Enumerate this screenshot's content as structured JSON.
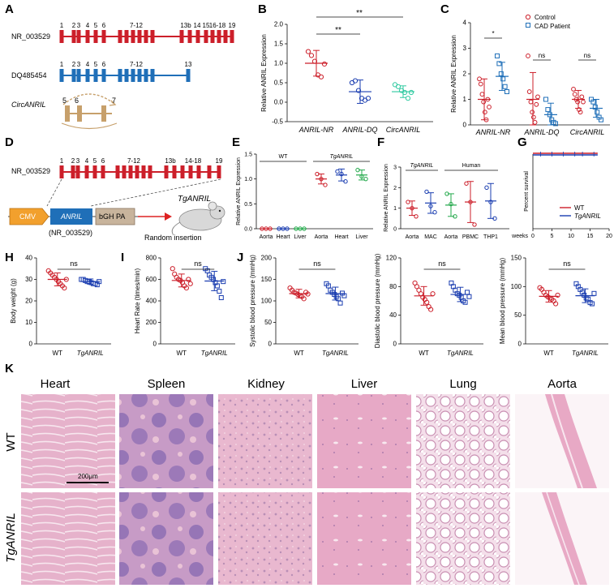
{
  "figure": {
    "panel_letters": [
      "A",
      "B",
      "C",
      "D",
      "E",
      "F",
      "G",
      "H",
      "I",
      "J",
      "K"
    ],
    "colors": {
      "red": "#cc1f2a",
      "blue": "#1f6fb8",
      "teal": "#2fc9a0",
      "navy": "#1a3db0",
      "green": "#22a84a",
      "tan": "#c7a06b",
      "he_pink": "#e3a9c6",
      "he_purple": "#8d6fb0"
    }
  },
  "panelA": {
    "transcripts": [
      {
        "name": "NR_003529",
        "exon_labels": [
          "1",
          "2",
          "3",
          "4",
          "5",
          "6",
          "7-12",
          "13b",
          "14",
          "15",
          "16-18",
          "19"
        ]
      },
      {
        "name": "DQ485454",
        "exon_labels": [
          "1",
          "2",
          "3",
          "4",
          "5",
          "6",
          "7-12",
          "13"
        ]
      }
    ],
    "circ": {
      "name": "CircANRIL",
      "exon_labels": [
        "5",
        "6",
        "7"
      ]
    }
  },
  "panelD": {
    "transcript": "NR_003529",
    "exon_labels": [
      "1",
      "2",
      "3",
      "4",
      "5",
      "6",
      "7-12",
      "13b",
      "14-18",
      "19"
    ],
    "construct": {
      "cmv": "CMV",
      "anril": "ANRIL",
      "bgh": "bGH PA",
      "sub": "(NR_003529)",
      "insertion": "Random insertion",
      "mouse": "TgANRIL"
    }
  },
  "chart_data": [
    {
      "panel": "B",
      "type": "scatter",
      "ylabel": "Relative ANRIL Expression",
      "ylim": [
        -0.5,
        2.0
      ],
      "yticks": [
        "-0.5",
        "0.0",
        "0.5",
        "1.0",
        "1.5",
        "2.0"
      ],
      "categories": [
        "ANRIL-NR",
        "ANRIL-DQ",
        "CircANRIL"
      ],
      "series": [
        {
          "group": "ANRIL-NR",
          "mean": 1.0,
          "sd": 0.33,
          "values": [
            1.3,
            1.2,
            1.05,
            0.7,
            0.65,
            0.98
          ]
        },
        {
          "group": "ANRIL-DQ",
          "mean": 0.27,
          "sd": 0.3,
          "values": [
            0.5,
            0.55,
            0.3,
            0.1,
            0.05,
            0.1
          ]
        },
        {
          "group": "CircANRIL",
          "mean": 0.27,
          "sd": 0.15,
          "values": [
            0.45,
            0.4,
            0.3,
            0.25,
            0.1,
            0.25
          ]
        }
      ],
      "annotations": [
        "**",
        "**"
      ]
    },
    {
      "panel": "C",
      "type": "scatter",
      "ylabel": "Relative ANRIL Expression",
      "ylim": [
        0,
        4
      ],
      "yticks": [
        "0",
        "1",
        "2",
        "3",
        "4"
      ],
      "categories": [
        "ANRIL-NR",
        "ANRIL-DQ",
        "CircANRIL"
      ],
      "legend": [
        "Control",
        "CAD Patient"
      ],
      "series": [
        {
          "name": "Control",
          "groups": [
            {
              "mean": 1.0,
              "sd": 0.8,
              "values": [
                1.8,
                1.6,
                1.2,
                0.9,
                0.5,
                0.2,
                1.0,
                0.7
              ]
            },
            {
              "mean": 1.0,
              "sd": 1.05,
              "values": [
                2.7,
                1.3,
                0.9,
                0.5,
                0.3,
                0.1,
                0.8,
                1.1
              ]
            },
            {
              "mean": 1.0,
              "sd": 0.35,
              "values": [
                1.4,
                1.2,
                1.0,
                0.9,
                0.6,
                0.5,
                1.1,
                0.9
              ]
            }
          ]
        },
        {
          "name": "CAD Patient",
          "groups": [
            {
              "mean": 1.9,
              "sd": 0.55,
              "values": [
                2.7,
                2.4,
                2.0,
                1.8,
                1.5,
                1.3
              ]
            },
            {
              "mean": 0.4,
              "sd": 0.45,
              "values": [
                1.0,
                0.6,
                0.4,
                0.2,
                0.1,
                0.05
              ]
            },
            {
              "mean": 0.65,
              "sd": 0.35,
              "values": [
                1.0,
                0.9,
                0.7,
                0.5,
                0.3,
                0.2
              ]
            }
          ]
        }
      ],
      "annotations": [
        "*",
        "ns",
        "ns"
      ]
    },
    {
      "panel": "E",
      "type": "scatter",
      "ylabel": "Relative ANRIL Expression",
      "ylim": [
        0,
        1.5
      ],
      "yticks": [
        "0.0",
        "0.5",
        "1.0",
        "1.5"
      ],
      "categories": [
        "Aorta",
        "Heart",
        "Liver",
        "Aorta",
        "Heart",
        "Liver"
      ],
      "group_labels": [
        "WT",
        "TgANRIL"
      ],
      "series": [
        {
          "mean": 0.0,
          "sd": 0.0,
          "color": "red",
          "values": [
            0,
            0,
            0
          ]
        },
        {
          "mean": 0.0,
          "sd": 0.0,
          "color": "navy",
          "values": [
            0,
            0,
            0
          ]
        },
        {
          "mean": 0.0,
          "sd": 0.0,
          "color": "green",
          "values": [
            0,
            0,
            0
          ]
        },
        {
          "mean": 1.0,
          "sd": 0.1,
          "color": "red",
          "values": [
            1.1,
            1.0,
            0.88
          ]
        },
        {
          "mean": 1.08,
          "sd": 0.12,
          "color": "navy",
          "values": [
            1.15,
            1.1,
            0.95
          ]
        },
        {
          "mean": 1.08,
          "sd": 0.1,
          "color": "green",
          "values": [
            1.18,
            1.05,
            1.0
          ]
        }
      ]
    },
    {
      "panel": "F",
      "type": "scatter",
      "ylabel": "Relative ANRIL Expression",
      "ylim": [
        0,
        3
      ],
      "yticks": [
        "0",
        "1",
        "2",
        "3"
      ],
      "categories": [
        "Aorta",
        "MAC",
        "Aorta",
        "PBMC",
        "THP1"
      ],
      "group_labels": [
        "TgANRIL",
        "Human"
      ],
      "series": [
        {
          "mean": 1.0,
          "sd": 0.35,
          "color": "red",
          "values": [
            1.3,
            1.0,
            0.6
          ]
        },
        {
          "mean": 1.25,
          "sd": 0.5,
          "color": "navy",
          "values": [
            1.8,
            1.1,
            0.8
          ]
        },
        {
          "mean": 1.15,
          "sd": 0.55,
          "color": "green",
          "values": [
            1.7,
            1.2,
            0.6
          ]
        },
        {
          "mean": 1.3,
          "sd": 1.0,
          "color": "red",
          "values": [
            2.2,
            1.3,
            0.2
          ]
        },
        {
          "mean": 1.35,
          "sd": 0.85,
          "color": "navy",
          "values": [
            2.0,
            1.3,
            0.5
          ]
        }
      ]
    },
    {
      "panel": "G",
      "type": "line",
      "ylabel": "Percent survival",
      "xlabel": "weeks",
      "xlim": [
        0,
        20
      ],
      "ylim": [
        0,
        100
      ],
      "xticks": [
        "0",
        "5",
        "10",
        "15",
        "20"
      ],
      "legend": [
        "WT",
        "TgANRIL"
      ],
      "series": [
        {
          "name": "WT",
          "x": [
            0,
            17
          ],
          "y": [
            100,
            100
          ]
        },
        {
          "name": "TgANRIL",
          "x": [
            0,
            17
          ],
          "y": [
            100,
            100
          ]
        }
      ]
    },
    {
      "panel": "H",
      "type": "scatter",
      "ylabel": "Body weight (g)",
      "ylim": [
        0,
        40
      ],
      "yticks": [
        "0",
        "10",
        "20",
        "30",
        "40"
      ],
      "categories": [
        "WT",
        "TgANRIL"
      ],
      "annotation": "ns",
      "series": [
        {
          "mean": 30,
          "sd": 3,
          "values": [
            34,
            33,
            32,
            31,
            30,
            29,
            28,
            27,
            26,
            30
          ]
        },
        {
          "mean": 29,
          "sd": 1.2,
          "values": [
            30,
            30,
            29.5,
            29,
            29,
            28.5,
            28,
            28,
            27.5,
            29
          ]
        }
      ]
    },
    {
      "panel": "I",
      "type": "scatter",
      "ylabel": "Heart Rate (times/min)",
      "ylim": [
        0,
        800
      ],
      "yticks": [
        "0",
        "200",
        "400",
        "600",
        "800"
      ],
      "categories": [
        "WT",
        "TgANRIL"
      ],
      "annotation": "ns",
      "series": [
        {
          "mean": 590,
          "sd": 60,
          "values": [
            700,
            650,
            620,
            600,
            590,
            570,
            540,
            520,
            600,
            560
          ]
        },
        {
          "mean": 585,
          "sd": 90,
          "values": [
            700,
            680,
            640,
            620,
            600,
            570,
            540,
            490,
            430,
            580
          ]
        }
      ]
    },
    {
      "panel": "J1",
      "type": "scatter",
      "ylabel": "Systolic blood pressure (mmHg)",
      "ylim": [
        0,
        200
      ],
      "yticks": [
        "0",
        "50",
        "100",
        "150",
        "200"
      ],
      "categories": [
        "WT",
        "TgANRIL"
      ],
      "annotation": "ns",
      "series": [
        {
          "mean": 117,
          "sd": 10,
          "values": [
            130,
            125,
            120,
            118,
            115,
            112,
            110,
            105,
            120,
            116
          ]
        },
        {
          "mean": 117,
          "sd": 15,
          "values": [
            140,
            135,
            125,
            120,
            115,
            110,
            105,
            95,
            118,
            112
          ]
        }
      ]
    },
    {
      "panel": "J2",
      "type": "scatter",
      "ylabel": "Diastolic blood pressure (mmHg)",
      "ylim": [
        0,
        120
      ],
      "yticks": [
        "0",
        "40",
        "80",
        "120"
      ],
      "categories": [
        "WT",
        "TgANRIL"
      ],
      "annotation": "ns",
      "series": [
        {
          "mean": 67,
          "sd": 13,
          "values": [
            85,
            80,
            75,
            70,
            65,
            62,
            58,
            52,
            48,
            70
          ]
        },
        {
          "mean": 69,
          "sd": 10,
          "values": [
            85,
            80,
            75,
            70,
            68,
            65,
            60,
            58,
            72,
            66
          ]
        }
      ]
    },
    {
      "panel": "J3",
      "type": "scatter",
      "ylabel": "Mean blood pressure (mmHg)",
      "ylim": [
        0,
        150
      ],
      "yticks": [
        "0",
        "50",
        "100",
        "150"
      ],
      "categories": [
        "WT",
        "TgANRIL"
      ],
      "annotation": "ns",
      "series": [
        {
          "mean": 83,
          "sd": 10,
          "values": [
            98,
            95,
            90,
            85,
            82,
            80,
            78,
            75,
            70,
            85
          ]
        },
        {
          "mean": 84,
          "sd": 12,
          "values": [
            105,
            100,
            95,
            90,
            85,
            80,
            78,
            72,
            70,
            88
          ]
        }
      ]
    }
  ],
  "panelK": {
    "tissues": [
      "Heart",
      "Spleen",
      "Kidney",
      "Liver",
      "Lung",
      "Aorta"
    ],
    "rows": [
      "WT",
      "TgANRIL"
    ],
    "scale_bar": "200μm"
  }
}
